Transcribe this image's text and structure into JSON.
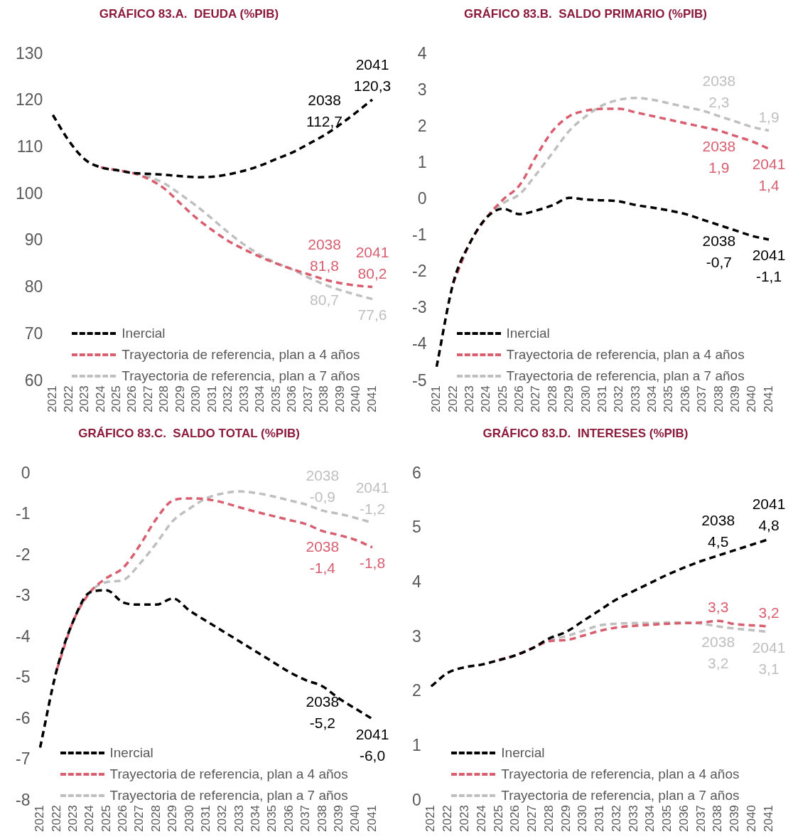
{
  "chart_data": [
    {
      "type": "line",
      "title": "GRÁFICO 83.A.  DEUDA (%PIB)",
      "categories": [
        "2021",
        "2022",
        "2023",
        "2024",
        "2025",
        "2026",
        "2027",
        "2028",
        "2029",
        "2030",
        "2031",
        "2032",
        "2033",
        "2034",
        "2035",
        "2036",
        "2037",
        "2038",
        "2039",
        "2040",
        "2041"
      ],
      "series": [
        {
          "name": "Inercial",
          "color": "#000000",
          "values": [
            117.0,
            111.5,
            107.5,
            105.8,
            105.2,
            104.6,
            104.4,
            104.2,
            103.9,
            103.7,
            103.8,
            104.3,
            105.1,
            106.2,
            107.6,
            109.0,
            110.8,
            112.7,
            115.0,
            117.6,
            120.3
          ]
        },
        {
          "name": "Trayectoria de referencia, plan a 4 años",
          "color": "#d75f70",
          "values": [
            null,
            null,
            null,
            105.8,
            105.2,
            104.6,
            103.3,
            101.2,
            98.0,
            94.9,
            92.3,
            90.0,
            88.2,
            86.6,
            85.2,
            84.0,
            82.9,
            81.8,
            81.0,
            80.5,
            80.2
          ]
        },
        {
          "name": "Trayectoria de referencia, plan a 7 años",
          "color": "#bfbfbf",
          "values": [
            117.0,
            111.5,
            107.5,
            105.8,
            105.2,
            104.6,
            103.8,
            102.3,
            100.0,
            97.5,
            94.7,
            91.8,
            89.2,
            87.0,
            85.3,
            83.9,
            82.2,
            80.7,
            79.5,
            78.5,
            77.6
          ]
        }
      ],
      "ylim": [
        60,
        130
      ],
      "yticks": [
        60,
        70,
        80,
        90,
        100,
        110,
        120,
        130
      ],
      "legend": "bottom left",
      "line_style": "dashed",
      "marker": "none",
      "annotations": [
        {
          "text": "2038\n112,7",
          "x": "2038",
          "y": 112.7
        },
        {
          "text": "2041\n120,3",
          "x": "2041",
          "y": 120.3
        },
        {
          "text": "2038\n81,8",
          "x": "2038",
          "y": 81.8
        },
        {
          "text": "2041\n80,2",
          "x": "2041",
          "y": 80.2
        },
        {
          "text": "80,7",
          "x": "2038",
          "y": 80.7
        },
        {
          "text": "77,6",
          "x": "2041",
          "y": 77.6
        }
      ]
    },
    {
      "type": "line",
      "title": "GRÁFICO 83.B.  SALDO PRIMARIO (%PIB)",
      "categories": [
        "2021",
        "2022",
        "2023",
        "2024",
        "2025",
        "2026",
        "2027",
        "2028",
        "2029",
        "2030",
        "2031",
        "2032",
        "2033",
        "2034",
        "2035",
        "2036",
        "2037",
        "2038",
        "2039",
        "2040",
        "2041"
      ],
      "series": [
        {
          "name": "Inercial",
          "color": "#000000",
          "values": [
            -4.6,
            -2.3,
            -1.2,
            -0.5,
            -0.25,
            -0.4,
            -0.3,
            -0.15,
            0.05,
            0.0,
            -0.02,
            -0.05,
            -0.15,
            -0.22,
            -0.3,
            -0.4,
            -0.55,
            -0.7,
            -0.85,
            -1.0,
            -1.1
          ]
        },
        {
          "name": "Trayectoria de referencia, plan a 4 años",
          "color": "#d75f70",
          "values": [
            null,
            -2.3,
            -1.2,
            -0.5,
            0.0,
            0.4,
            1.2,
            1.9,
            2.3,
            2.45,
            2.5,
            2.5,
            2.4,
            2.3,
            2.2,
            2.1,
            2.0,
            1.9,
            1.75,
            1.6,
            1.4
          ]
        },
        {
          "name": "Trayectoria de referencia, plan a 7 años",
          "color": "#bfbfbf",
          "values": [
            -4.6,
            -2.3,
            -1.2,
            -0.5,
            -0.1,
            0.15,
            0.7,
            1.3,
            1.9,
            2.3,
            2.6,
            2.75,
            2.8,
            2.75,
            2.65,
            2.55,
            2.45,
            2.3,
            2.15,
            2.0,
            1.9
          ]
        }
      ],
      "ylim": [
        -5,
        4
      ],
      "yticks": [
        -5,
        -4,
        -3,
        -2,
        -1,
        0,
        1,
        2,
        3,
        4
      ],
      "legend": "bottom left",
      "line_style": "dashed",
      "marker": "none",
      "annotations": [
        {
          "text": "2038\n2,3",
          "x": "2038",
          "y": 2.3
        },
        {
          "text": "1,9",
          "x": "2041",
          "y": 1.9
        },
        {
          "text": "2038\n1,9",
          "x": "2038",
          "y": 1.9
        },
        {
          "text": "2041\n1,4",
          "x": "2041",
          "y": 1.4
        },
        {
          "text": "2038\n-0,7",
          "x": "2038",
          "y": -0.7
        },
        {
          "text": "2041\n-1,1",
          "x": "2041",
          "y": -1.1
        }
      ]
    },
    {
      "type": "line",
      "title": "GRÁFICO 83.C.  SALDO TOTAL (%PIB)",
      "categories": [
        "2021",
        "2022",
        "2023",
        "2024",
        "2025",
        "2026",
        "2027",
        "2028",
        "2029",
        "2030",
        "2031",
        "2032",
        "2033",
        "2034",
        "2035",
        "2036",
        "2037",
        "2038",
        "2039",
        "2040",
        "2041"
      ],
      "series": [
        {
          "name": "Inercial",
          "color": "#000000",
          "values": [
            -6.7,
            -4.8,
            -3.6,
            -2.9,
            -2.85,
            -3.15,
            -3.2,
            -3.2,
            -3.05,
            -3.35,
            -3.6,
            -3.85,
            -4.1,
            -4.35,
            -4.6,
            -4.85,
            -5.05,
            -5.2,
            -5.5,
            -5.75,
            -6.0
          ]
        },
        {
          "name": "Trayectoria de referencia, plan a 4 años",
          "color": "#d75f70",
          "values": [
            null,
            -4.8,
            -3.6,
            -2.9,
            -2.55,
            -2.3,
            -1.75,
            -1.1,
            -0.65,
            -0.6,
            -0.62,
            -0.7,
            -0.82,
            -0.93,
            -1.03,
            -1.13,
            -1.23,
            -1.4,
            -1.5,
            -1.62,
            -1.8
          ]
        },
        {
          "name": "Trayectoria de referencia, plan a 7 años",
          "color": "#bfbfbf",
          "values": [
            -6.7,
            -4.8,
            -3.6,
            -2.9,
            -2.65,
            -2.6,
            -2.2,
            -1.7,
            -1.15,
            -0.85,
            -0.6,
            -0.48,
            -0.43,
            -0.47,
            -0.55,
            -0.65,
            -0.75,
            -0.9,
            -0.98,
            -1.08,
            -1.2
          ]
        }
      ],
      "ylim": [
        -8,
        0
      ],
      "yticks": [
        -8,
        -7,
        -6,
        -5,
        -4,
        -3,
        -2,
        -1,
        0
      ],
      "legend": "bottom left",
      "line_style": "dashed",
      "marker": "none",
      "annotations": [
        {
          "text": "2038\n-0,9",
          "x": "2038",
          "y": -0.9
        },
        {
          "text": "2041\n-1,2",
          "x": "2041",
          "y": -1.2
        },
        {
          "text": "2038\n-1,4",
          "x": "2038",
          "y": -1.4
        },
        {
          "text": "-1,8",
          "x": "2041",
          "y": -1.8
        },
        {
          "text": "2038\n-5,2",
          "x": "2038",
          "y": -5.2
        },
        {
          "text": "2041\n-6,0",
          "x": "2041",
          "y": -6.0
        }
      ]
    },
    {
      "type": "line",
      "title": "GRÁFICO 83.D.  INTERESES (%PIB)",
      "categories": [
        "2021",
        "2022",
        "2023",
        "2024",
        "2025",
        "2026",
        "2027",
        "2028",
        "2029",
        "2030",
        "2031",
        "2032",
        "2033",
        "2034",
        "2035",
        "2036",
        "2037",
        "2038",
        "2039",
        "2040",
        "2041"
      ],
      "series": [
        {
          "name": "Inercial",
          "color": "#000000",
          "values": [
            2.1,
            2.35,
            2.45,
            2.5,
            2.58,
            2.67,
            2.8,
            2.98,
            3.1,
            3.3,
            3.5,
            3.7,
            3.85,
            4.0,
            4.15,
            4.28,
            4.4,
            4.5,
            4.6,
            4.7,
            4.8
          ]
        },
        {
          "name": "Trayectoria de referencia, plan a 4 años",
          "color": "#d75f70",
          "values": [
            null,
            null,
            null,
            null,
            2.58,
            2.67,
            2.8,
            2.93,
            2.95,
            3.03,
            3.12,
            3.18,
            3.21,
            3.23,
            3.25,
            3.26,
            3.27,
            3.3,
            3.24,
            3.22,
            3.2
          ]
        },
        {
          "name": "Trayectoria de referencia, plan a 7 años",
          "color": "#bfbfbf",
          "values": [
            2.1,
            2.35,
            2.45,
            2.5,
            2.58,
            2.67,
            2.8,
            2.95,
            3.02,
            3.12,
            3.22,
            3.25,
            3.26,
            3.26,
            3.27,
            3.27,
            3.25,
            3.2,
            3.16,
            3.13,
            3.1
          ]
        }
      ],
      "ylim": [
        0,
        6
      ],
      "yticks": [
        0,
        1,
        2,
        3,
        4,
        5,
        6
      ],
      "legend": "bottom left",
      "line_style": "dashed",
      "marker": "none",
      "annotations": [
        {
          "text": "2038\n4,5",
          "x": "2038",
          "y": 4.5
        },
        {
          "text": "2041\n4,8",
          "x": "2041",
          "y": 4.8
        },
        {
          "text": "3,3",
          "x": "2038",
          "y": 3.3
        },
        {
          "text": "3,2",
          "x": "2041",
          "y": 3.2
        },
        {
          "text": "2038\n3,2",
          "x": "2038",
          "y": 3.2
        },
        {
          "text": "2041\n3,1",
          "x": "2041",
          "y": 3.1
        }
      ]
    }
  ]
}
